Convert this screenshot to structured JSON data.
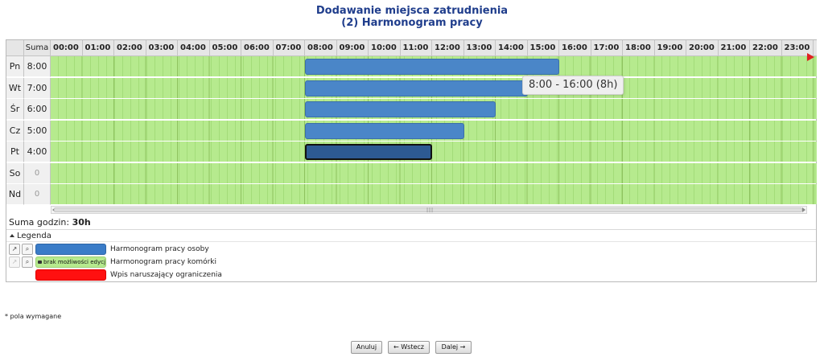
{
  "title": {
    "line1": "Dodawanie miejsca zatrudnienia",
    "line2": "(2) Harmonogram pracy"
  },
  "schedule": {
    "sum_header": "Suma",
    "hours": [
      "00:00",
      "01:00",
      "02:00",
      "03:00",
      "04:00",
      "05:00",
      "06:00",
      "07:00",
      "08:00",
      "09:00",
      "10:00",
      "11:00",
      "12:00",
      "13:00",
      "14:00",
      "15:00",
      "16:00",
      "17:00",
      "18:00",
      "19:00",
      "20:00",
      "21:00",
      "22:00",
      "23:00"
    ],
    "days": [
      {
        "label": "Pn",
        "sum": "8:00",
        "start": 8,
        "end": 16,
        "selected": false
      },
      {
        "label": "Wt",
        "sum": "7:00",
        "start": 8,
        "end": 15,
        "selected": false
      },
      {
        "label": "Śr",
        "sum": "6:00",
        "start": 8,
        "end": 14,
        "selected": false
      },
      {
        "label": "Cz",
        "sum": "5:00",
        "start": 8,
        "end": 13,
        "selected": false
      },
      {
        "label": "Pt",
        "sum": "4:00",
        "start": 8,
        "end": 12,
        "selected": true
      },
      {
        "label": "So",
        "sum": "0",
        "start": null,
        "end": null,
        "selected": false
      },
      {
        "label": "Nd",
        "sum": "0",
        "start": null,
        "end": null,
        "selected": false
      }
    ],
    "tooltip": "8:00 - 16:00 (8h)",
    "total_label": "Suma godzin:",
    "total_value": "30h"
  },
  "legend": {
    "header": "Legenda",
    "items": [
      {
        "text": "Harmonogram pracy osoby",
        "swatch": "blue",
        "badge": ""
      },
      {
        "text": "Harmonogram pracy komórki",
        "swatch": "green",
        "badge": "brak możliwości edycji"
      },
      {
        "text": "Wpis naruszający ograniczenia",
        "swatch": "red",
        "badge": ""
      }
    ]
  },
  "required_note": "* pola wymagane",
  "buttons": {
    "cancel": "Anuluj",
    "back": "← Wstecz",
    "next": "Dalej →"
  },
  "colors": {
    "bar": "#4a86c8",
    "bar_selected": "#2d5a92",
    "grid": "#b6ea8e",
    "title": "#1f3d8c"
  }
}
